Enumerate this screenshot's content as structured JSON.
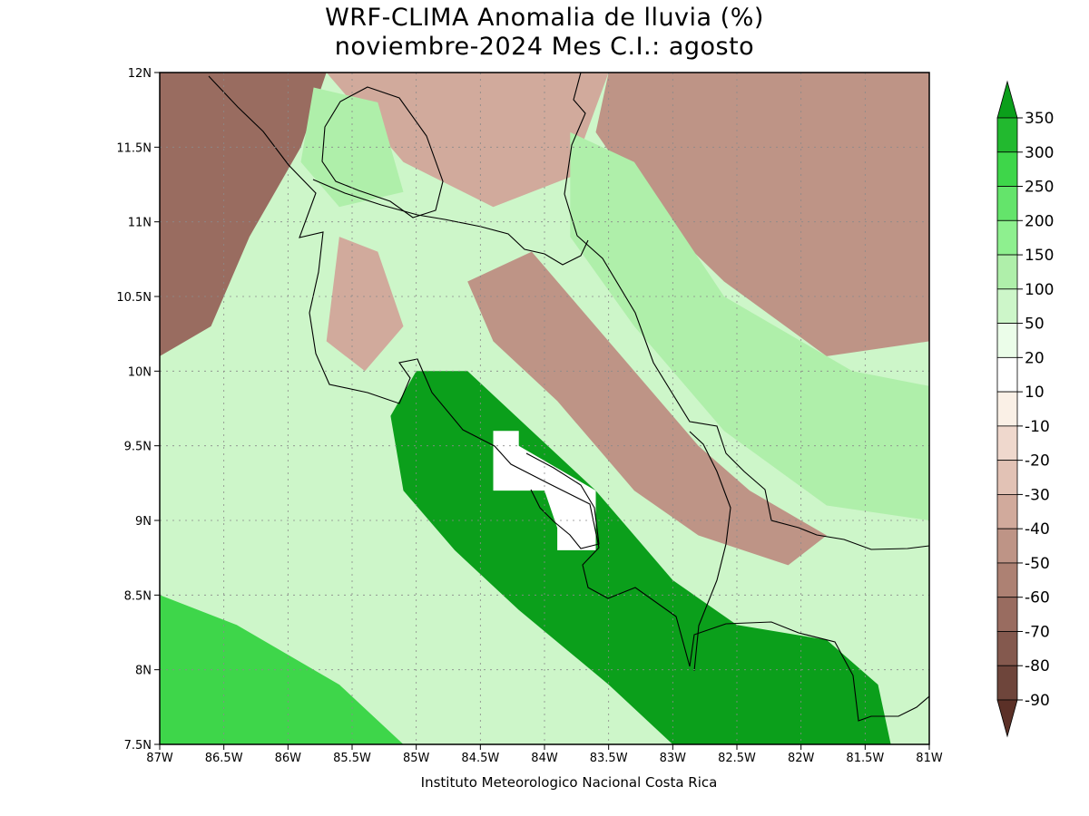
{
  "title": {
    "line1": "WRF-CLIMA Anomalia de lluvia (%)",
    "line2": "noviembre-2024 Mes C.I.: agosto"
  },
  "credit": "Instituto Meteorologico Nacional Costa Rica",
  "chart_data": {
    "type": "heatmap",
    "variable": "Anomalia de lluvia (%)",
    "xlim": [
      -87,
      -81
    ],
    "ylim": [
      7.5,
      12
    ],
    "x_ticks": [
      {
        "value": -87,
        "label": "87W"
      },
      {
        "value": -86.5,
        "label": "86.5W"
      },
      {
        "value": -86,
        "label": "86W"
      },
      {
        "value": -85.5,
        "label": "85.5W"
      },
      {
        "value": -85,
        "label": "85W"
      },
      {
        "value": -84.5,
        "label": "84.5W"
      },
      {
        "value": -84,
        "label": "84W"
      },
      {
        "value": -83.5,
        "label": "83.5W"
      },
      {
        "value": -83,
        "label": "83W"
      },
      {
        "value": -82.5,
        "label": "82.5W"
      },
      {
        "value": -82,
        "label": "82W"
      },
      {
        "value": -81.5,
        "label": "81.5W"
      },
      {
        "value": -81,
        "label": "81W"
      }
    ],
    "y_ticks": [
      {
        "value": 12,
        "label": "12N"
      },
      {
        "value": 11.5,
        "label": "11.5N"
      },
      {
        "value": 11,
        "label": "11N"
      },
      {
        "value": 10.5,
        "label": "10.5N"
      },
      {
        "value": 10,
        "label": "10N"
      },
      {
        "value": 9.5,
        "label": "9.5N"
      },
      {
        "value": 9,
        "label": "9N"
      },
      {
        "value": 8.5,
        "label": "8.5N"
      },
      {
        "value": 8,
        "label": "8N"
      },
      {
        "value": 7.5,
        "label": "7.5N"
      }
    ],
    "grid": true,
    "legend_placement": "right",
    "colorbar": {
      "levels": [
        "350",
        "300",
        "250",
        "200",
        "150",
        "100",
        "50",
        "20",
        "10",
        "-10",
        "-20",
        "-30",
        "-40",
        "-50",
        "-60",
        "-70",
        "-80",
        "-90"
      ],
      "colors": [
        "#0b9f1b",
        "#22b92f",
        "#3ed64a",
        "#64e46b",
        "#8ef08f",
        "#afefaa",
        "#cdf6c9",
        "#ebfde9",
        "#ffffff",
        "#faf0e6",
        "#efd8cd",
        "#e2c2b5",
        "#d1aa9c",
        "#be9486",
        "#ad8173",
        "#996c60",
        "#84594e",
        "#6e453b",
        "#5b3027"
      ]
    },
    "regions": [
      {
        "name": "dry-north-west",
        "value": -60,
        "color": "#996c60",
        "polygon": [
          [
            -87,
            12
          ],
          [
            -85.7,
            12
          ],
          [
            -85.9,
            11.5
          ],
          [
            -86.3,
            10.9
          ],
          [
            -86.6,
            10.3
          ],
          [
            -87,
            10.1
          ]
        ]
      },
      {
        "name": "dry-north-east",
        "value": -50,
        "color": "#be9486",
        "polygon": [
          [
            -83.5,
            12
          ],
          [
            -81,
            12
          ],
          [
            -81,
            10.2
          ],
          [
            -81.8,
            10.1
          ],
          [
            -82.6,
            10.6
          ],
          [
            -83.2,
            11.1
          ],
          [
            -83.6,
            11.6
          ]
        ]
      },
      {
        "name": "dry-north-center",
        "value": -40,
        "color": "#d1aa9c",
        "polygon": [
          [
            -85.7,
            12
          ],
          [
            -83.5,
            12
          ],
          [
            -83.8,
            11.3
          ],
          [
            -84.4,
            11.1
          ],
          [
            -85.1,
            11.4
          ],
          [
            -85.5,
            11.8
          ]
        ]
      },
      {
        "name": "dry-guanacaste-ridge",
        "value": -40,
        "color": "#d1aa9c",
        "polygon": [
          [
            -85.6,
            10.9
          ],
          [
            -85.3,
            10.8
          ],
          [
            -85.1,
            10.3
          ],
          [
            -85.4,
            10.0
          ],
          [
            -85.7,
            10.2
          ]
        ]
      },
      {
        "name": "dry-cordillera",
        "value": -50,
        "color": "#be9486",
        "polygon": [
          [
            -84.6,
            10.6
          ],
          [
            -84.1,
            10.8
          ],
          [
            -83.4,
            10.1
          ],
          [
            -82.8,
            9.5
          ],
          [
            -82.4,
            9.2
          ],
          [
            -81.8,
            8.9
          ],
          [
            -82.1,
            8.7
          ],
          [
            -82.8,
            8.9
          ],
          [
            -83.3,
            9.2
          ],
          [
            -83.9,
            9.8
          ],
          [
            -84.4,
            10.2
          ]
        ]
      },
      {
        "name": "wet-nicaragua-lake",
        "value": 100,
        "color": "#afefaa",
        "polygon": [
          [
            -85.8,
            11.9
          ],
          [
            -85.3,
            11.8
          ],
          [
            -85.1,
            11.2
          ],
          [
            -85.6,
            11.1
          ],
          [
            -85.9,
            11.4
          ]
        ]
      },
      {
        "name": "wet-caribbean-north",
        "value": 100,
        "color": "#afefaa",
        "polygon": [
          [
            -83.8,
            11.6
          ],
          [
            -83.3,
            11.4
          ],
          [
            -82.6,
            10.5
          ],
          [
            -81.6,
            10.0
          ],
          [
            -81,
            9.9
          ],
          [
            -81,
            9.0
          ],
          [
            -81.8,
            9.1
          ],
          [
            -82.6,
            9.6
          ],
          [
            -83.3,
            10.3
          ],
          [
            -83.8,
            10.9
          ]
        ]
      },
      {
        "name": "wet-south-pacific-core",
        "value": 350,
        "color": "#0b9f1b",
        "polygon": [
          [
            -85.0,
            10.0
          ],
          [
            -84.6,
            10.0
          ],
          [
            -84.1,
            9.6
          ],
          [
            -83.6,
            9.2
          ],
          [
            -83.3,
            8.9
          ],
          [
            -83.0,
            8.6
          ],
          [
            -82.5,
            8.3
          ],
          [
            -81.8,
            8.2
          ],
          [
            -81.4,
            7.9
          ],
          [
            -81.3,
            7.5
          ],
          [
            -83.0,
            7.5
          ],
          [
            -83.5,
            7.9
          ],
          [
            -84.2,
            8.4
          ],
          [
            -84.7,
            8.8
          ],
          [
            -85.1,
            9.2
          ],
          [
            -85.2,
            9.7
          ]
        ]
      },
      {
        "name": "wet-pacific-southwest",
        "value": 250,
        "color": "#3ed64a",
        "polygon": [
          [
            -87,
            8.5
          ],
          [
            -86.4,
            8.3
          ],
          [
            -85.6,
            7.9
          ],
          [
            -85.1,
            7.5
          ],
          [
            -87,
            7.5
          ]
        ]
      },
      {
        "name": "no-data-osa",
        "value": null,
        "color": "#ffffff",
        "polygon": [
          [
            -84.4,
            9.6
          ],
          [
            -84.2,
            9.6
          ],
          [
            -84.2,
            9.5
          ],
          [
            -83.6,
            9.2
          ],
          [
            -83.6,
            8.8
          ],
          [
            -83.9,
            8.8
          ],
          [
            -83.9,
            8.95
          ],
          [
            -84.0,
            9.2
          ],
          [
            -84.4,
            9.2
          ]
        ]
      }
    ]
  }
}
